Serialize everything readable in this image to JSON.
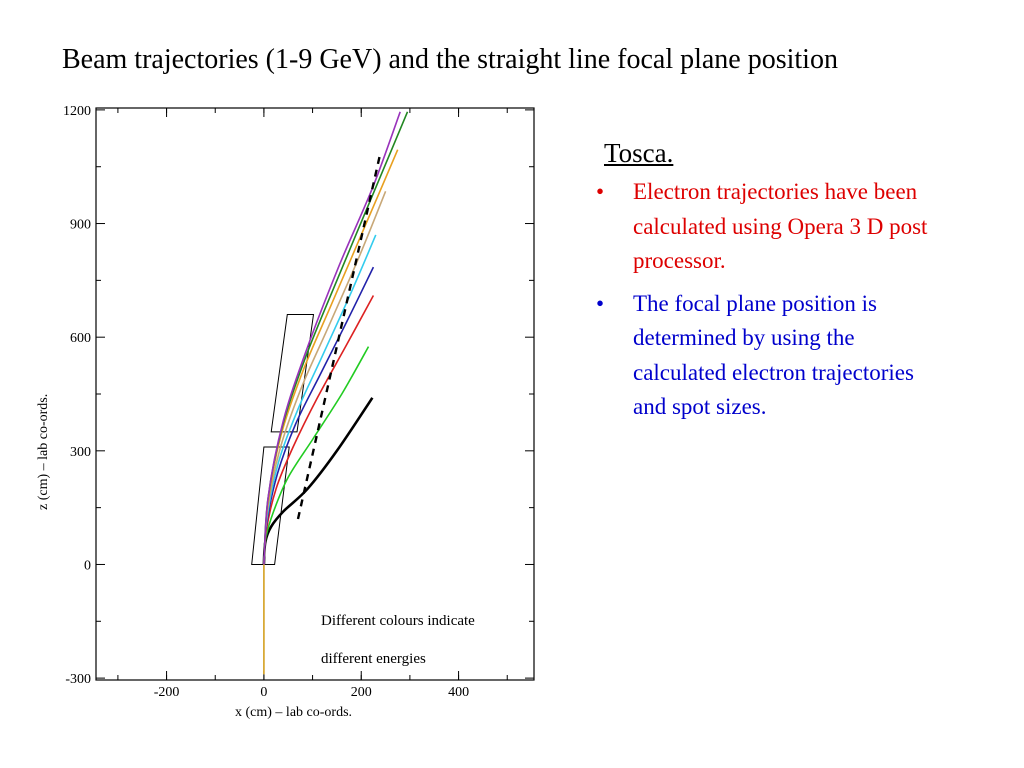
{
  "slide": {
    "title": "Beam trajectories (1-9 GeV) and the straight line focal plane position",
    "subtitle": "Tosca.",
    "bullets": [
      {
        "marker": "•",
        "text": "Electron trajectories have been calculated using Opera 3 D post processor.",
        "color": "#dd0000"
      },
      {
        "marker": "•",
        "text": "The focal plane position is determined by using the calculated electron trajectories and spot sizes.",
        "color": "#0000cc"
      }
    ]
  },
  "chart_data": {
    "type": "line",
    "xlabel": "x (cm)  – lab co-ords.",
    "ylabel": "z (cm)  – lab co-ords.",
    "xlim": [
      -345,
      555
    ],
    "ylim": [
      -305,
      1205
    ],
    "xticks": [
      -200,
      0,
      200,
      400
    ],
    "yticks": [
      -300,
      0,
      300,
      600,
      900,
      1200
    ],
    "tick_labels_x": [
      "-200",
      "0",
      "200",
      "400"
    ],
    "tick_labels_y": [
      "-300",
      "0",
      "300",
      "600",
      "900",
      "1200"
    ],
    "annotations": [
      "Different colours indicate",
      "different energies"
    ],
    "beam_axis": {
      "color": "#d4a020",
      "points": [
        [
          0,
          -290
        ],
        [
          0,
          0
        ]
      ]
    },
    "series": [
      {
        "color": "#000000",
        "points": [
          [
            0,
            0
          ],
          [
            3,
            60
          ],
          [
            15,
            100
          ],
          [
            40,
            140
          ],
          [
            90,
            200
          ],
          [
            150,
            300
          ],
          [
            223,
            440
          ]
        ]
      },
      {
        "color": "#22cc22",
        "points": [
          [
            0,
            0
          ],
          [
            4,
            70
          ],
          [
            20,
            140
          ],
          [
            50,
            230
          ],
          [
            100,
            330
          ],
          [
            160,
            450
          ],
          [
            215,
            575
          ]
        ]
      },
      {
        "color": "#dd2222",
        "points": [
          [
            0,
            0
          ],
          [
            5,
            90
          ],
          [
            25,
            200
          ],
          [
            60,
            310
          ],
          [
            110,
            440
          ],
          [
            170,
            580
          ],
          [
            225,
            710
          ]
        ]
      },
      {
        "color": "#2222aa",
        "points": [
          [
            0,
            0
          ],
          [
            6,
            110
          ],
          [
            28,
            240
          ],
          [
            65,
            370
          ],
          [
            115,
            500
          ],
          [
            170,
            640
          ],
          [
            225,
            785
          ]
        ]
      },
      {
        "color": "#33ccee",
        "points": [
          [
            0,
            0
          ],
          [
            6,
            120
          ],
          [
            30,
            270
          ],
          [
            70,
            410
          ],
          [
            120,
            550
          ],
          [
            180,
            720
          ],
          [
            230,
            870
          ]
        ]
      },
      {
        "color": "#c8a878",
        "points": [
          [
            0,
            0
          ],
          [
            7,
            140
          ],
          [
            32,
            300
          ],
          [
            75,
            460
          ],
          [
            130,
            620
          ],
          [
            195,
            810
          ],
          [
            250,
            985
          ]
        ]
      },
      {
        "color": "#e8a020",
        "points": [
          [
            0,
            0
          ],
          [
            8,
            160
          ],
          [
            35,
            340
          ],
          [
            80,
            510
          ],
          [
            140,
            690
          ],
          [
            210,
            900
          ],
          [
            275,
            1095
          ]
        ]
      },
      {
        "color": "#228822",
        "points": [
          [
            0,
            0
          ],
          [
            8,
            170
          ],
          [
            37,
            360
          ],
          [
            85,
            545
          ],
          [
            150,
            750
          ],
          [
            225,
            980
          ],
          [
            295,
            1195
          ]
        ]
      },
      {
        "color": "#9933bb",
        "points": [
          [
            0,
            0
          ],
          [
            9,
            180
          ],
          [
            40,
            380
          ],
          [
            90,
            575
          ],
          [
            155,
            790
          ],
          [
            225,
            1000
          ],
          [
            280,
            1195
          ]
        ]
      }
    ],
    "focal_line": {
      "color": "#000000",
      "dashed": true,
      "points": [
        [
          70,
          120
        ],
        [
          240,
          1090
        ]
      ]
    },
    "magnet_boxes": [
      {
        "color": "#000000",
        "points": [
          [
            -25,
            0
          ],
          [
            0,
            310
          ],
          [
            52,
            310
          ],
          [
            22,
            0
          ]
        ]
      },
      {
        "color": "#000000",
        "points": [
          [
            15,
            350
          ],
          [
            48,
            660
          ],
          [
            102,
            660
          ],
          [
            68,
            350
          ]
        ]
      }
    ]
  }
}
